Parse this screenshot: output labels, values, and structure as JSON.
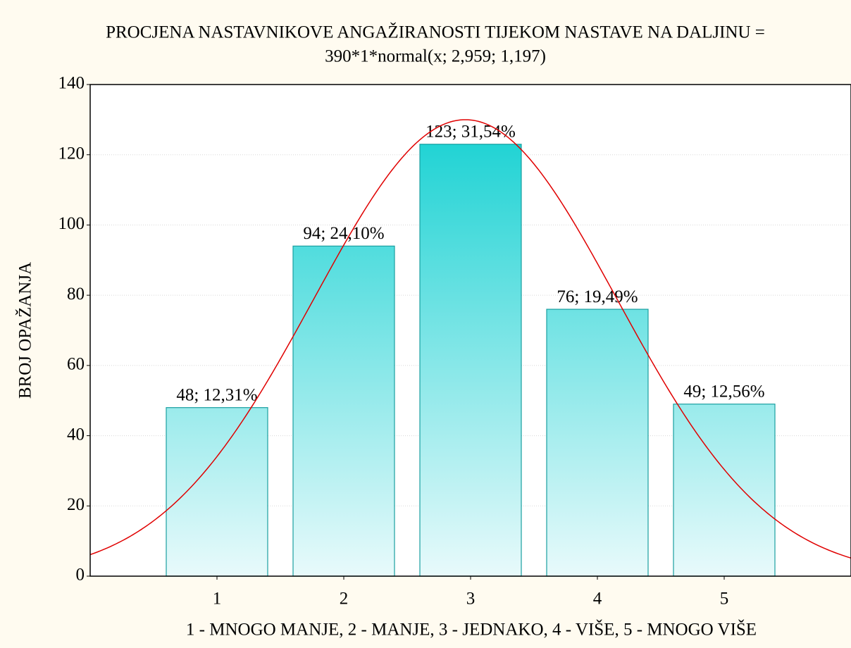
{
  "chart_data": {
    "type": "bar",
    "title": [
      "PROCJENA NASTAVNIKOVE ANGAŽIRANOSTI TIJEKOM NASTAVE NA DALJINU =",
      "390*1*normal(x; 2,959; 1,197)"
    ],
    "xlabel": "1 - MNOGO MANJE,  2 - MANJE, 3 - JEDNAKO, 4 - VIŠE, 5 - MNOGO VIŠE",
    "ylabel": "BROJ OPAŽANJA",
    "x": [
      1,
      2,
      3,
      4,
      5
    ],
    "values": [
      48,
      94,
      123,
      76,
      49
    ],
    "value_labels": [
      "48; 12,31%",
      "94; 24,10%",
      "123; 31,54%",
      "76; 19,49%",
      "49; 12,56%"
    ],
    "color": "#20d3d4",
    "fit": {
      "n": 390,
      "bin_width": 1,
      "mean": 2.959,
      "sd": 1.197,
      "color": "#e00000"
    },
    "xlim": [
      0,
      6
    ],
    "xticks": [
      1,
      2,
      3,
      4,
      5
    ],
    "ylim": [
      0,
      140
    ],
    "yticks": [
      0,
      20,
      40,
      60,
      80,
      100,
      120,
      140
    ],
    "grid": true
  }
}
